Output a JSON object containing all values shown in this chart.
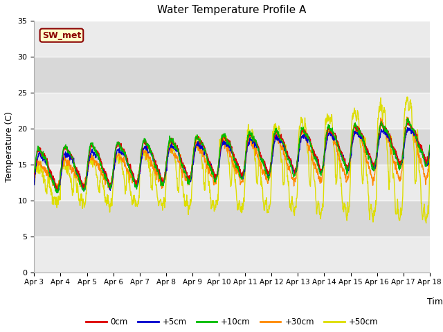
{
  "title": "Water Temperature Profile A",
  "xlabel": "Time",
  "ylabel": "Temperature (C)",
  "ylim": [
    0,
    35
  ],
  "annotation": "SW_met",
  "fig_bg": "#ffffff",
  "plot_bg_light": "#f0f0f0",
  "plot_bg_dark": "#e0e0e0",
  "legend_entries": [
    "0cm",
    "+5cm",
    "+10cm",
    "+30cm",
    "+50cm"
  ],
  "legend_colors": [
    "#dd0000",
    "#0000cc",
    "#00bb00",
    "#ff8800",
    "#dddd00"
  ],
  "xtick_labels": [
    "Apr 3",
    "Apr 4",
    "Apr 5",
    "Apr 6",
    "Apr 7",
    "Apr 8",
    "Apr 9",
    "Apr 10",
    "Apr 11",
    "Apr 12",
    "Apr 13",
    "Apr 14",
    "Apr 15",
    "Apr 16",
    "Apr 17",
    "Apr 18"
  ],
  "yticks": [
    0,
    5,
    10,
    15,
    20,
    25,
    30,
    35
  ],
  "n_days": 15
}
